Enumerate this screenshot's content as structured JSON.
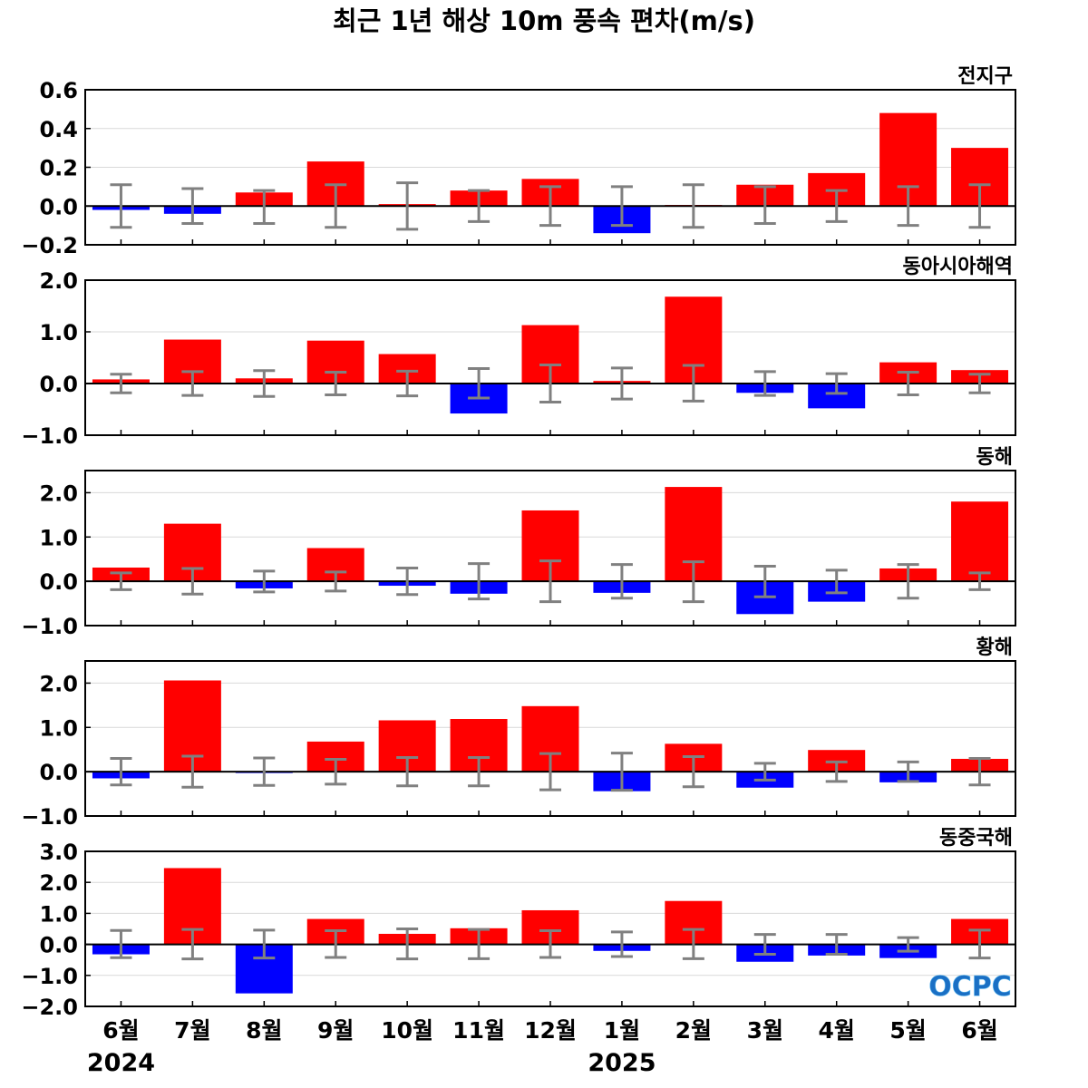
{
  "chart_data": {
    "type": "bar",
    "title": "최근 1년 해상 10m 풍속 편차(m/s)",
    "categories": [
      "6월",
      "7월",
      "8월",
      "9월",
      "10월",
      "11월",
      "12월",
      "1월",
      "2월",
      "3월",
      "4월",
      "5월",
      "6월"
    ],
    "years": [
      {
        "label": "2024",
        "category_index": 0
      },
      {
        "label": "2025",
        "category_index": 7
      }
    ],
    "colors": {
      "positive": "#ff0000",
      "negative": "#0000ff",
      "error_bar": "#808080",
      "grid": "#d9d9d9",
      "zero_line": "#000000"
    },
    "grid": true,
    "logo": "OCPC",
    "panels": [
      {
        "name": "전지구",
        "ylim": [
          -0.2,
          0.6
        ],
        "yticks": [
          -0.2,
          0.0,
          0.2,
          0.4,
          0.6
        ],
        "ytick_labels": [
          "−0.2",
          "0.0",
          "0.2",
          "0.4",
          "0.6"
        ],
        "values": [
          -0.02,
          -0.04,
          0.07,
          0.23,
          0.01,
          0.08,
          0.14,
          -0.14,
          0.0,
          0.11,
          0.17,
          0.48,
          0.3
        ],
        "error_low": [
          -0.11,
          -0.09,
          -0.09,
          -0.11,
          -0.12,
          -0.08,
          -0.1,
          -0.1,
          -0.11,
          -0.09,
          -0.08,
          -0.1,
          -0.11
        ],
        "error_high": [
          0.11,
          0.09,
          0.08,
          0.11,
          0.12,
          0.08,
          0.1,
          0.1,
          0.11,
          0.1,
          0.08,
          0.1,
          0.11
        ]
      },
      {
        "name": "동아시아해역",
        "ylim": [
          -1.0,
          2.0
        ],
        "yticks": [
          -1.0,
          0.0,
          1.0,
          2.0
        ],
        "ytick_labels": [
          "−1.0",
          "0.0",
          "1.0",
          "2.0"
        ],
        "values": [
          0.08,
          0.85,
          0.1,
          0.83,
          0.57,
          -0.58,
          1.13,
          0.05,
          1.68,
          -0.18,
          -0.48,
          0.41,
          0.26
        ],
        "error_low": [
          -0.18,
          -0.23,
          -0.25,
          -0.22,
          -0.24,
          -0.28,
          -0.36,
          -0.3,
          -0.34,
          -0.23,
          -0.19,
          -0.22,
          -0.18
        ],
        "error_high": [
          0.18,
          0.23,
          0.25,
          0.22,
          0.24,
          0.29,
          0.36,
          0.3,
          0.35,
          0.23,
          0.19,
          0.22,
          0.18
        ]
      },
      {
        "name": "동해",
        "ylim": [
          -1.0,
          2.5
        ],
        "yticks": [
          -1.0,
          0.0,
          1.0,
          2.0
        ],
        "ytick_labels": [
          "−1.0",
          "0.0",
          "1.0",
          "2.0"
        ],
        "values": [
          0.31,
          1.3,
          -0.16,
          0.75,
          -0.1,
          -0.28,
          1.6,
          -0.26,
          2.13,
          -0.74,
          -0.46,
          0.29,
          1.8
        ],
        "error_low": [
          -0.19,
          -0.29,
          -0.24,
          -0.22,
          -0.3,
          -0.4,
          -0.46,
          -0.38,
          -0.46,
          -0.35,
          -0.26,
          -0.38,
          -0.19
        ],
        "error_high": [
          0.19,
          0.29,
          0.23,
          0.21,
          0.3,
          0.4,
          0.46,
          0.38,
          0.44,
          0.34,
          0.25,
          0.38,
          0.19
        ]
      },
      {
        "name": "황해",
        "ylim": [
          -1.0,
          2.5
        ],
        "yticks": [
          -1.0,
          0.0,
          1.0,
          2.0
        ],
        "ytick_labels": [
          "−1.0",
          "0.0",
          "1.0",
          "2.0"
        ],
        "values": [
          -0.15,
          2.06,
          -0.03,
          0.68,
          1.16,
          1.19,
          1.48,
          -0.44,
          0.63,
          -0.36,
          0.49,
          -0.24,
          0.29
        ],
        "error_low": [
          -0.3,
          -0.35,
          -0.31,
          -0.28,
          -0.32,
          -0.32,
          -0.41,
          -0.42,
          -0.34,
          -0.19,
          -0.22,
          -0.22,
          -0.3
        ],
        "error_high": [
          0.3,
          0.35,
          0.31,
          0.28,
          0.32,
          0.32,
          0.41,
          0.42,
          0.34,
          0.19,
          0.22,
          0.22,
          0.3
        ]
      },
      {
        "name": "동중국해",
        "ylim": [
          -2.0,
          3.0
        ],
        "yticks": [
          -2.0,
          -1.0,
          0.0,
          1.0,
          2.0,
          3.0
        ],
        "ytick_labels": [
          "−2.0",
          "−1.0",
          "0.0",
          "1.0",
          "2.0",
          "3.0"
        ],
        "values": [
          -0.32,
          2.46,
          -1.58,
          0.82,
          0.34,
          0.52,
          1.1,
          -0.21,
          1.4,
          -0.56,
          -0.36,
          -0.44,
          0.82
        ],
        "error_low": [
          -0.43,
          -0.47,
          -0.44,
          -0.42,
          -0.47,
          -0.46,
          -0.42,
          -0.39,
          -0.46,
          -0.32,
          -0.32,
          -0.22,
          -0.44
        ],
        "error_high": [
          0.45,
          0.48,
          0.46,
          0.44,
          0.5,
          0.48,
          0.44,
          0.4,
          0.48,
          0.32,
          0.32,
          0.22,
          0.46
        ]
      }
    ]
  }
}
